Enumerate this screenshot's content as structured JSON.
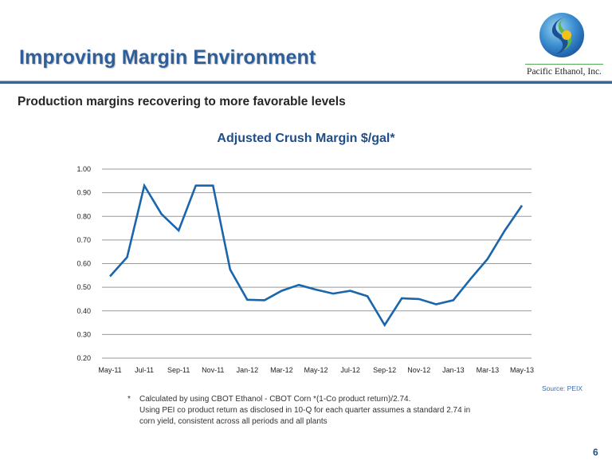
{
  "header": {
    "title": "Improving Margin Environment",
    "logo_text": "Pacific Ethanol, Inc.",
    "logo_icon": "pacific-ethanol-logo"
  },
  "subtitle": "Production margins recovering to more favorable levels",
  "colors": {
    "title": "#2e5f9b",
    "rule": "#3a6591",
    "line_series": "#1a66ac",
    "chart_title": "#1f4e88",
    "gridline": "#999999"
  },
  "chart_data": {
    "type": "line",
    "title": "Adjusted Crush Margin $/gal*",
    "xlabel": "",
    "ylabel": "",
    "ylim": [
      0.2,
      1.0
    ],
    "y_ticks": [
      "0.20",
      "0.30",
      "0.40",
      "0.50",
      "0.60",
      "0.70",
      "0.80",
      "0.90",
      "1.00"
    ],
    "y_tick_values": [
      0.2,
      0.3,
      0.4,
      0.5,
      0.6,
      0.7,
      0.8,
      0.9,
      1.0
    ],
    "grid": true,
    "legend": "none",
    "x": [
      "May-11",
      "Jun-11",
      "Jul-11",
      "Aug-11",
      "Sep-11",
      "Oct-11",
      "Nov-11",
      "Dec-11",
      "Jan-12",
      "Feb-12",
      "Mar-12",
      "Apr-12",
      "May-12",
      "Jun-12",
      "Jul-12",
      "Aug-12",
      "Sep-12",
      "Oct-12",
      "Nov-12",
      "Dec-12",
      "Jan-13",
      "Feb-13",
      "Mar-13",
      "Apr-13",
      "May-13"
    ],
    "x_tick_labels": [
      "May-11",
      "",
      "Jul-11",
      "",
      "Sep-11",
      "",
      "Nov-11",
      "",
      "Jan-12",
      "",
      "Mar-12",
      "",
      "May-12",
      "",
      "Jul-12",
      "",
      "Sep-12",
      "",
      "Nov-12",
      "",
      "Jan-13",
      "",
      "Mar-13",
      "",
      "May-13"
    ],
    "series": [
      {
        "name": "Adjusted Crush Margin",
        "values": [
          0.546,
          0.627,
          0.93,
          0.81,
          0.74,
          0.93,
          0.93,
          0.575,
          0.447,
          0.445,
          0.485,
          0.51,
          0.49,
          0.473,
          0.485,
          0.462,
          0.34,
          0.453,
          0.45,
          0.428,
          0.445,
          0.535,
          0.62,
          0.74,
          0.846
        ]
      }
    ]
  },
  "footnote": {
    "marker": "*",
    "lines": [
      "Calculated by using CBOT Ethanol - CBOT Corn *(1-Co product return)/2.74.",
      "Using PEI co product return as disclosed in 10-Q for each quarter assumes a standard 2.74 in",
      "corn yield, consistent across all periods and all plants"
    ]
  },
  "source": "Source: PEIX",
  "page_number": "6"
}
